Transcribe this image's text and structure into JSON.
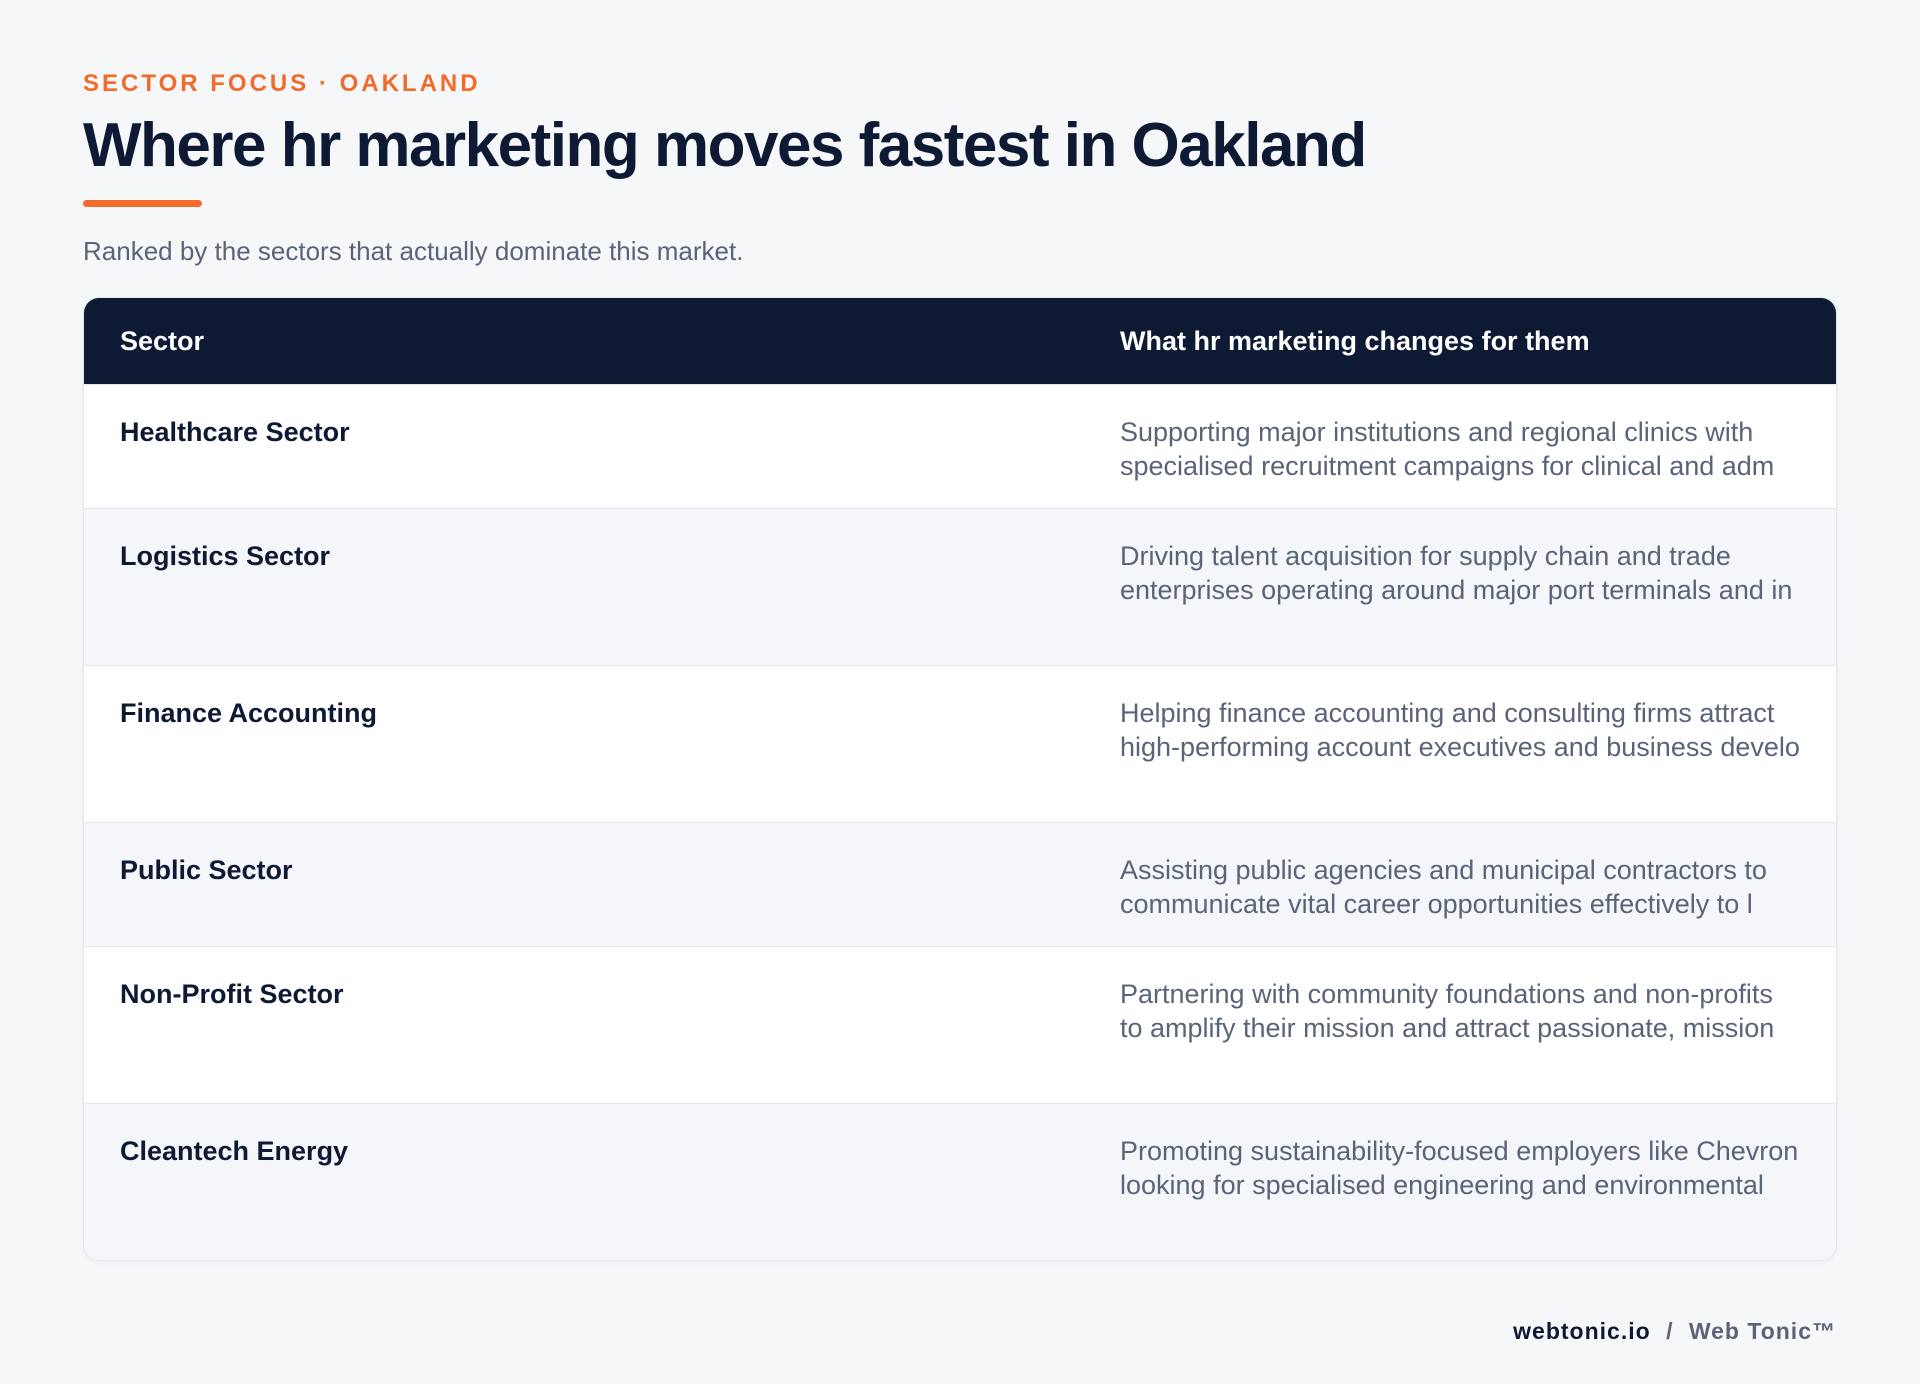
{
  "header": {
    "eyebrow": "SECTOR FOCUS · OAKLAND",
    "title": "Where hr marketing moves fastest in Oakland",
    "subtitle": "Ranked by the sectors that actually dominate this market."
  },
  "table": {
    "columns": [
      "Sector",
      "What hr marketing changes for them"
    ],
    "rows": [
      {
        "sector": "Healthcare Sector",
        "description": "Supporting major institutions and regional clinics with specialised recruitment campaigns for clinical and adm"
      },
      {
        "sector": "Logistics Sector",
        "description": "Driving talent acquisition for supply chain and trade enterprises operating around major port terminals and in"
      },
      {
        "sector": "Finance Accounting",
        "description": "Helping finance accounting and consulting firms attract high-performing account executives and business develo"
      },
      {
        "sector": "Public Sector",
        "description": "Assisting public agencies and municipal contractors to communicate vital career opportunities effectively to l"
      },
      {
        "sector": "Non-Profit Sector",
        "description": "Partnering with community foundations and non-profits to amplify their mission and attract passionate, mission"
      },
      {
        "sector": "Cleantech Energy",
        "description": "Promoting sustainability-focused employers like Chevron looking for specialised engineering and environmental"
      }
    ]
  },
  "footer": {
    "domain": "webtonic.io",
    "separator": "/",
    "brand": "Web Tonic™"
  },
  "colors": {
    "accent": "#f26b2b",
    "navy": "#0e1a33",
    "muted": "#5a6478",
    "background": "#f6f7f9"
  }
}
